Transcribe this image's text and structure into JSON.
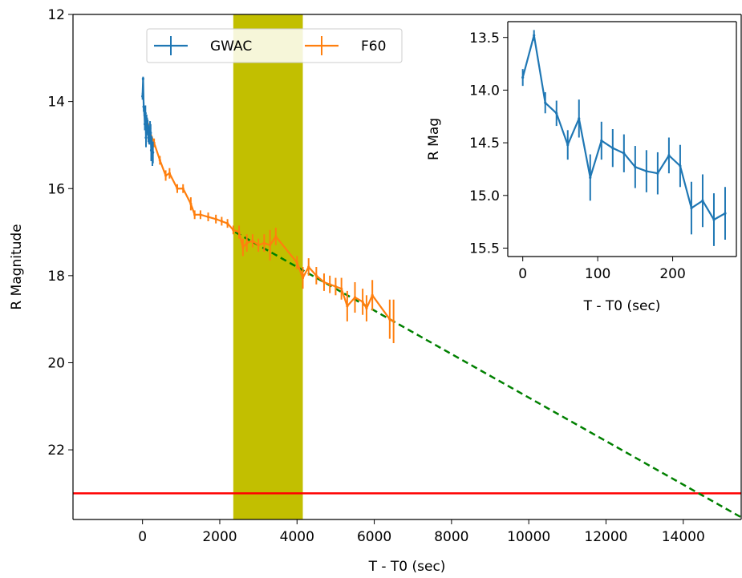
{
  "chart_data": [
    {
      "type": "line",
      "title": "",
      "xlabel": "T - T0 (sec)",
      "ylabel": "R Magnitude",
      "xlim": [
        -1800,
        15500
      ],
      "ylim": [
        23.6,
        12.0
      ],
      "y_inverted": true,
      "xticks": [
        0,
        2000,
        4000,
        6000,
        8000,
        10000,
        12000,
        14000
      ],
      "yticks": [
        12,
        14,
        16,
        18,
        20,
        22
      ],
      "grid": false,
      "legend": {
        "placement": "top-left",
        "entries": [
          "GWAC",
          "F60"
        ]
      },
      "shaded_band": {
        "x_start": 2350,
        "x_end": 4150,
        "color": "#c2bf00"
      },
      "hline": {
        "y": 23.0,
        "color": "#ff0000"
      },
      "series": [
        {
          "name": "GWAC",
          "color": "#1f77b4",
          "x": [
            0,
            15,
            30,
            45,
            60,
            75,
            90,
            105,
            120,
            135,
            150,
            165,
            180,
            195,
            210,
            225,
            240,
            255,
            270
          ],
          "y": [
            13.88,
            13.48,
            14.12,
            14.22,
            14.52,
            14.27,
            14.83,
            14.48,
            14.55,
            14.6,
            14.73,
            14.77,
            14.79,
            14.62,
            14.72,
            15.12,
            15.05,
            15.23,
            15.17
          ],
          "err": [
            0.08,
            0.05,
            0.1,
            0.12,
            0.14,
            0.18,
            0.22,
            0.18,
            0.18,
            0.18,
            0.2,
            0.2,
            0.2,
            0.17,
            0.2,
            0.25,
            0.25,
            0.25,
            0.25
          ]
        },
        {
          "name": "F60",
          "color": "#ff7f0e",
          "x": [
            150,
            300,
            450,
            600,
            700,
            900,
            1050,
            1250,
            1350,
            1500,
            1700,
            1900,
            2050,
            2200,
            2350,
            2500,
            2600,
            2700,
            2850,
            3000,
            3150,
            3300,
            3450,
            4000,
            4150,
            4300,
            4500,
            4700,
            4850,
            5000,
            5150,
            5300,
            5500,
            5700,
            5800,
            5950,
            6400,
            6500
          ],
          "y": [
            14.6,
            14.95,
            15.35,
            15.7,
            15.65,
            16.0,
            16.0,
            16.35,
            16.6,
            16.6,
            16.65,
            16.7,
            16.75,
            16.8,
            16.95,
            17.0,
            17.35,
            17.25,
            17.2,
            17.3,
            17.25,
            17.3,
            17.1,
            17.7,
            18.05,
            17.8,
            18.0,
            18.15,
            18.2,
            18.25,
            18.3,
            18.7,
            18.5,
            18.6,
            18.75,
            18.45,
            19.0,
            19.05
          ],
          "err": [
            0.1,
            0.1,
            0.1,
            0.12,
            0.12,
            0.1,
            0.1,
            0.15,
            0.1,
            0.1,
            0.1,
            0.1,
            0.1,
            0.1,
            0.1,
            0.15,
            0.2,
            0.2,
            0.15,
            0.15,
            0.2,
            0.35,
            0.2,
            0.15,
            0.25,
            0.2,
            0.2,
            0.2,
            0.2,
            0.2,
            0.25,
            0.35,
            0.35,
            0.3,
            0.3,
            0.35,
            0.45,
            0.5
          ]
        },
        {
          "name": "",
          "style": "dashed",
          "color": "#008000",
          "x": [
            2400,
            15500
          ],
          "y": [
            17.0,
            23.55
          ]
        }
      ]
    },
    {
      "type": "line",
      "title": "",
      "xlabel": "T - T0 (sec)",
      "ylabel": "R Mag",
      "xlim": [
        -20,
        285
      ],
      "ylim": [
        15.58,
        13.35
      ],
      "y_inverted": true,
      "xticks": [
        0,
        100,
        200
      ],
      "yticks": [
        13.5,
        14.0,
        14.5,
        15.0,
        15.5
      ],
      "grid": false,
      "series_ref": "GWAC"
    }
  ]
}
